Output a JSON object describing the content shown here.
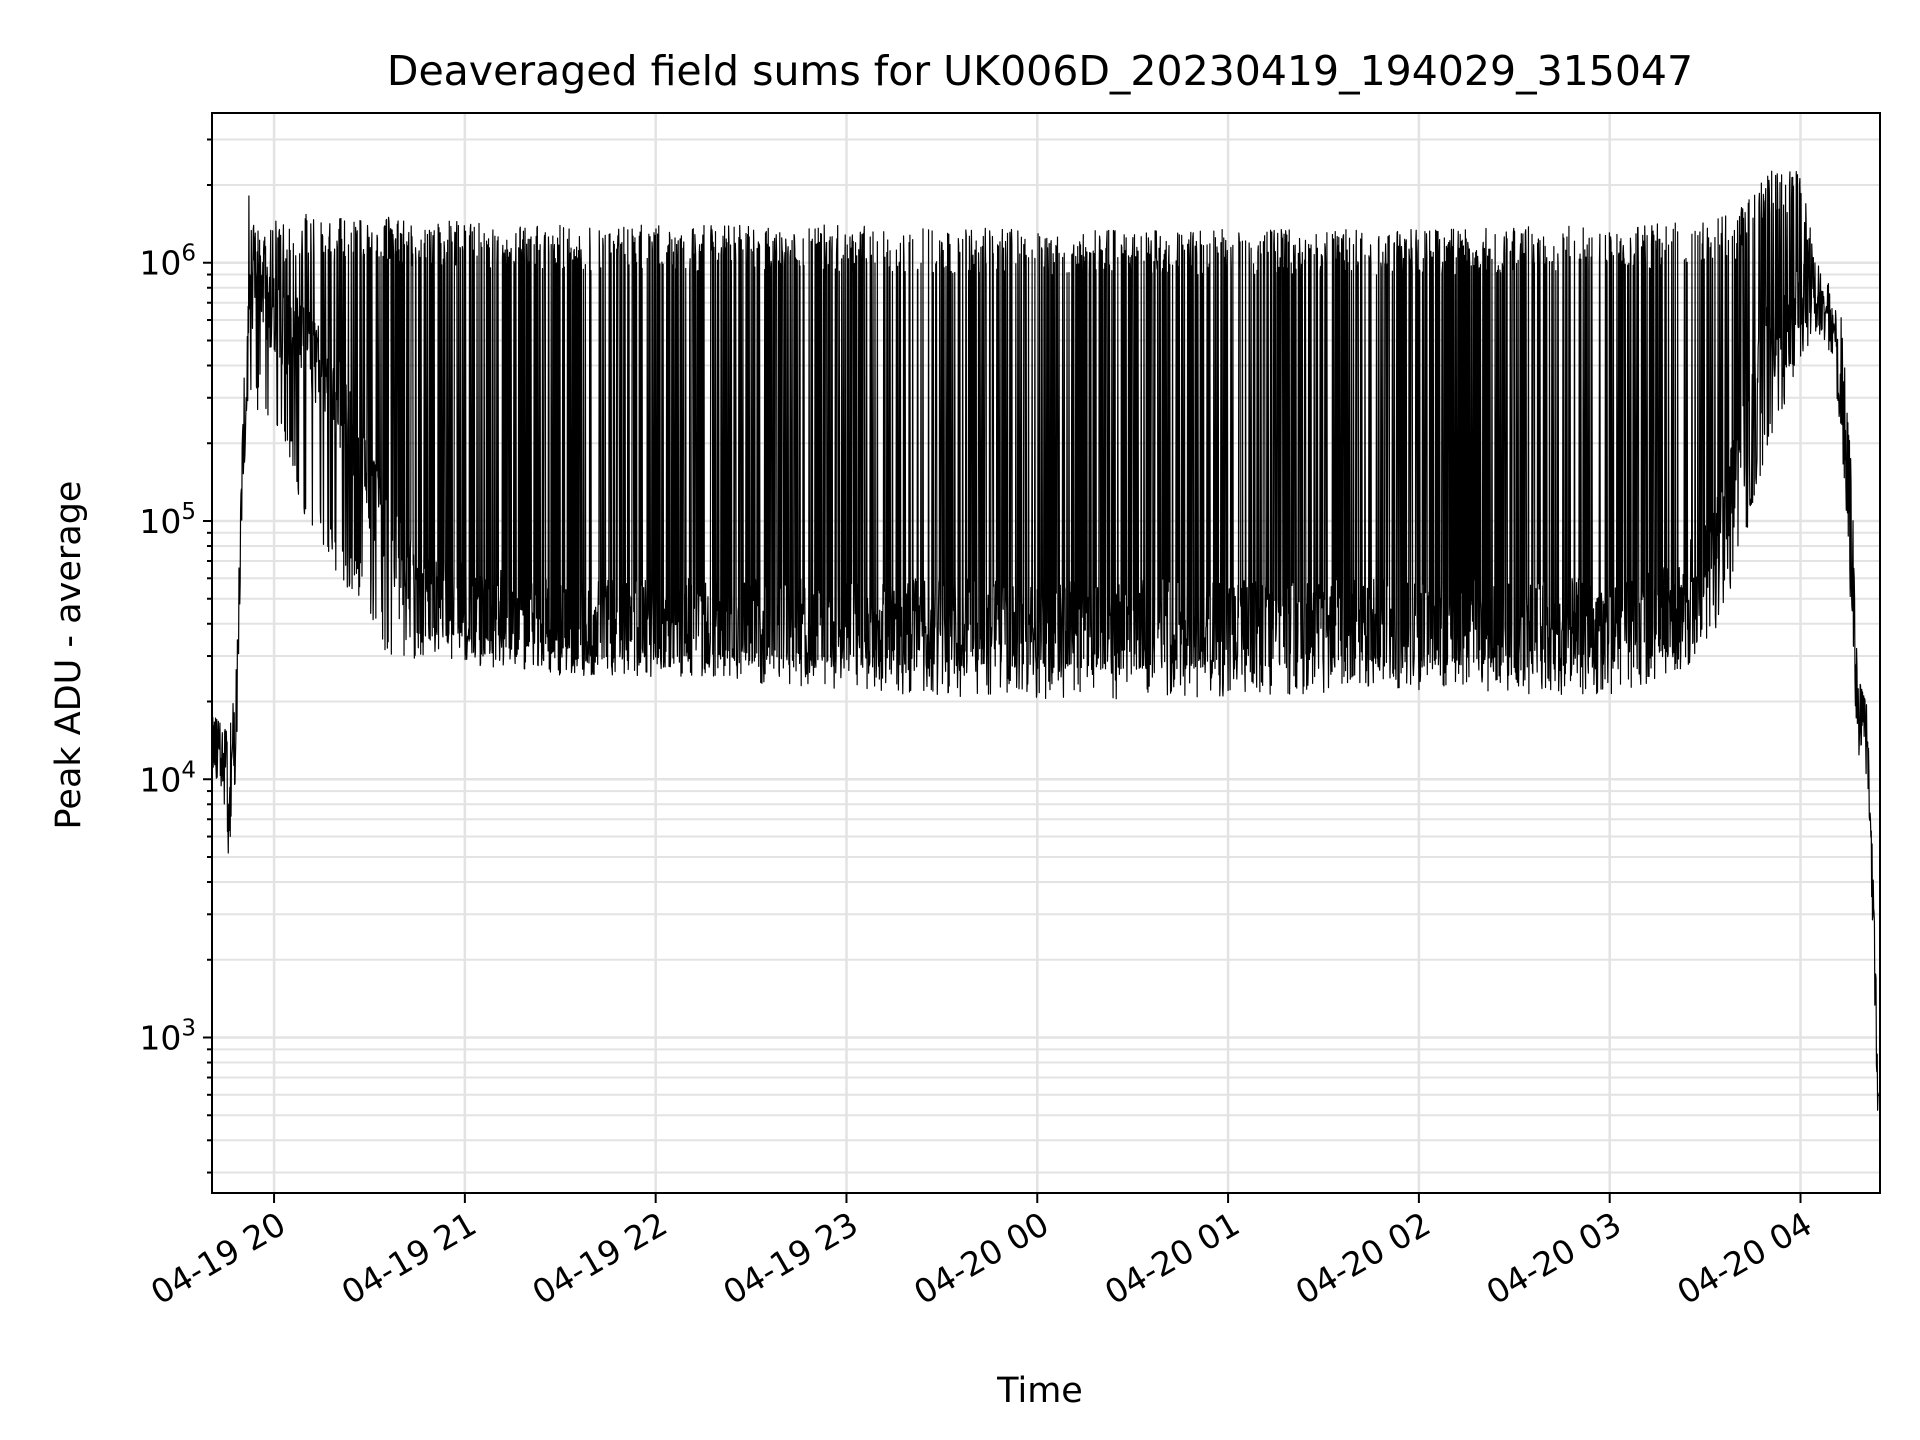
{
  "chart_data": {
    "type": "line",
    "title": "Deaveraged field sums for UK006D_20230419_194029_315047",
    "xlabel": "Time",
    "ylabel": "Peak ADU - average",
    "x_scale": "time",
    "y_scale": "log",
    "xlim": [
      "2023-04-19T19:40:29",
      "2023-04-20T04:25:00"
    ],
    "ylim": [
      250,
      3800000
    ],
    "x_ticks": [
      "2023-04-19T20:00",
      "2023-04-19T21:00",
      "2023-04-19T22:00",
      "2023-04-19T23:00",
      "2023-04-20T00:00",
      "2023-04-20T01:00",
      "2023-04-20T02:00",
      "2023-04-20T03:00",
      "2023-04-20T04:00"
    ],
    "x_tick_labels": [
      "04-19 20",
      "04-19 21",
      "04-19 22",
      "04-19 23",
      "04-20 00",
      "04-20 01",
      "04-20 02",
      "04-20 03",
      "04-20 04"
    ],
    "y_ticks": [
      1000,
      10000,
      100000,
      1000000
    ],
    "y_tick_labels": [
      {
        "base": "10",
        "exp": "3"
      },
      {
        "base": "10",
        "exp": "4"
      },
      {
        "base": "10",
        "exp": "5"
      },
      {
        "base": "10",
        "exp": "6"
      }
    ],
    "grid": true,
    "legend": "none",
    "series": [
      {
        "color": "#000000",
        "x": [
          "2023-04-19T19:40:29",
          "2023-04-19T19:42:00",
          "2023-04-19T19:44:00",
          "2023-04-19T19:46:00",
          "2023-04-19T19:47:00",
          "2023-04-19T19:48:00",
          "2023-04-19T19:50:00",
          "2023-04-19T19:52:00",
          "2023-04-19T19:54:00",
          "2023-04-19T19:56:00",
          "2023-04-19T19:58:00",
          "2023-04-19T20:02:00",
          "2023-04-19T20:10:00",
          "2023-04-19T20:20:00",
          "2023-04-19T20:30:00",
          "2023-04-19T20:35:00",
          "2023-04-19T20:40:00",
          "2023-04-19T20:45:00",
          "2023-04-19T21:00:00",
          "2023-04-19T21:30:00",
          "2023-04-19T22:00:00",
          "2023-04-19T23:00:00",
          "2023-04-20T00:00:00",
          "2023-04-20T01:00:00",
          "2023-04-20T02:00:00",
          "2023-04-20T03:00:00",
          "2023-04-20T03:20:00",
          "2023-04-20T03:30:00",
          "2023-04-20T03:40:00",
          "2023-04-20T03:50:00",
          "2023-04-20T04:00:00",
          "2023-04-20T04:05:00",
          "2023-04-20T04:10:00",
          "2023-04-20T04:13:00",
          "2023-04-20T04:16:00",
          "2023-04-20T04:18:00",
          "2023-04-20T04:21:00",
          "2023-04-20T04:23:00",
          "2023-04-20T04:24:30"
        ],
        "y": [
          15000,
          14000,
          12000,
          8000,
          13000,
          14000,
          150000,
          600000,
          1000000,
          900000,
          700000,
          550000,
          500000,
          300000,
          130000,
          90000,
          70000,
          60000,
          45000,
          40000,
          40000,
          40000,
          40000,
          40000,
          40000,
          40000,
          45000,
          70000,
          150000,
          500000,
          650000,
          750000,
          600000,
          300000,
          60000,
          20000,
          15000,
          3000,
          400
        ],
        "envelope_upper": [
          18000,
          17000,
          16000,
          15000,
          20000,
          25000,
          200000,
          1900000,
          1300000,
          1400000,
          1400000,
          1500000,
          1600000,
          1500000,
          1500000,
          1550000,
          1500000,
          1450000,
          1450000,
          1400000,
          1400000,
          1400000,
          1350000,
          1350000,
          1350000,
          1400000,
          1450000,
          1500000,
          1550000,
          2300000,
          2400000,
          1000000,
          800000,
          600000,
          200000,
          25000,
          19000,
          5000,
          800
        ],
        "envelope_lower": [
          11000,
          10000,
          8000,
          4600,
          8000,
          10000,
          120000,
          300000,
          250000,
          300000,
          250000,
          200000,
          100000,
          60000,
          45000,
          30000,
          30000,
          28000,
          28000,
          25000,
          25000,
          22000,
          20000,
          21000,
          22000,
          21000,
          25000,
          30000,
          60000,
          200000,
          400000,
          500000,
          450000,
          200000,
          40000,
          12000,
          10000,
          2000,
          400
        ]
      }
    ]
  }
}
